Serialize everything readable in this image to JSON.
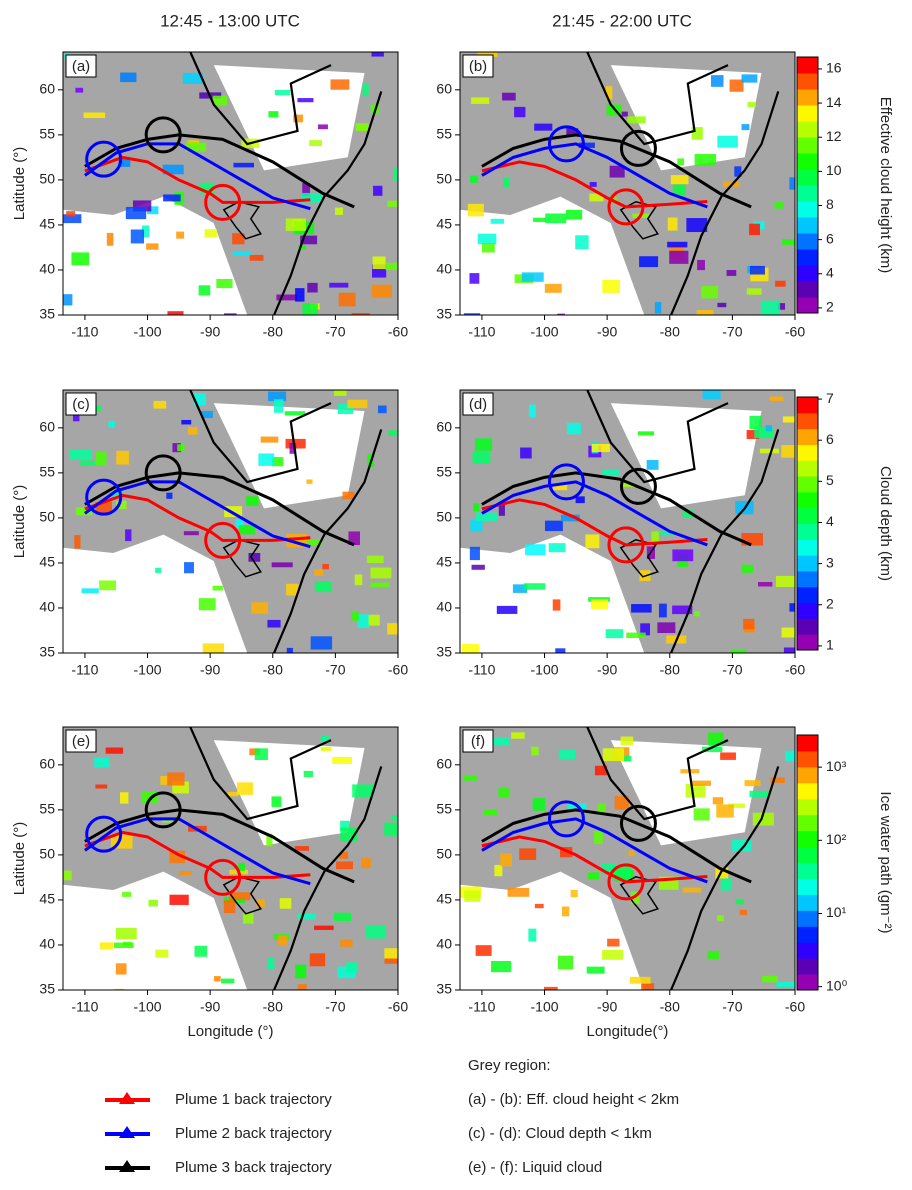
{
  "column_titles": [
    "12:45 - 13:00 UTC",
    "21:45 - 22:00 UTC"
  ],
  "chart_data": [
    {
      "type": "line",
      "panel_label": "(a)",
      "y_label": "Latitude (°)",
      "xlim": [
        -113.5,
        -60
      ],
      "ylim": [
        35,
        64.2
      ],
      "xticks": [
        -110,
        -100,
        -90,
        -80,
        -70,
        -60
      ],
      "yticks": [
        35,
        40,
        45,
        50,
        55,
        60
      ],
      "series": [
        {
          "color": "#ff0000",
          "x": [
            -110,
            -104,
            -100,
            -95,
            -90,
            -88,
            -80,
            -74
          ],
          "y": [
            51,
            52.5,
            52,
            50,
            48.5,
            47.5,
            47.5,
            47.8
          ]
        },
        {
          "color": "#0000ff",
          "x": [
            -110,
            -105,
            -100,
            -95,
            -90,
            -85,
            -80,
            -74
          ],
          "y": [
            50.5,
            53,
            54,
            54,
            52,
            50,
            48,
            46.8
          ]
        },
        {
          "color": "#000000",
          "x": [
            -110,
            -105,
            -100,
            -95,
            -88,
            -80,
            -72,
            -67
          ],
          "y": [
            51.5,
            53.5,
            54.5,
            55,
            54.5,
            52,
            48.5,
            47
          ]
        }
      ],
      "circles": [
        {
          "color": "#0000ff",
          "x": -107,
          "y": 52.3
        },
        {
          "color": "#000000",
          "x": -97.5,
          "y": 55
        },
        {
          "color": "#ff0000",
          "x": -88,
          "y": 47.5
        }
      ]
    },
    {
      "type": "line",
      "panel_label": "(b)",
      "xlim": [
        -113.5,
        -60
      ],
      "ylim": [
        35,
        64.2
      ],
      "xticks": [
        -110,
        -100,
        -90,
        -80,
        -70,
        -60
      ],
      "yticks": [
        35,
        40,
        45,
        50,
        55,
        60
      ],
      "series": [
        {
          "color": "#ff0000",
          "x": [
            -110,
            -104,
            -100,
            -95,
            -90,
            -87,
            -80,
            -74
          ],
          "y": [
            51,
            52,
            51.5,
            50,
            48,
            47,
            47.3,
            47.6
          ]
        },
        {
          "color": "#0000ff",
          "x": [
            -110,
            -105,
            -100,
            -95,
            -90,
            -85,
            -80,
            -74
          ],
          "y": [
            50.5,
            52.5,
            53.5,
            54,
            52.5,
            50.5,
            48.5,
            47
          ]
        },
        {
          "color": "#000000",
          "x": [
            -110,
            -105,
            -100,
            -95,
            -88,
            -80,
            -72,
            -67
          ],
          "y": [
            51.5,
            53.5,
            54.5,
            55,
            54.3,
            52,
            48.5,
            47
          ]
        }
      ],
      "circles": [
        {
          "color": "#0000ff",
          "x": -96.5,
          "y": 54
        },
        {
          "color": "#000000",
          "x": -85,
          "y": 53.5
        },
        {
          "color": "#ff0000",
          "x": -87,
          "y": 47
        }
      ]
    },
    {
      "type": "line",
      "panel_label": "(c)",
      "y_label": "Latitude (°)",
      "xlim": [
        -113.5,
        -60
      ],
      "ylim": [
        35,
        64.2
      ],
      "xticks": [
        -110,
        -100,
        -90,
        -80,
        -70,
        -60
      ],
      "yticks": [
        35,
        40,
        45,
        50,
        55,
        60
      ],
      "series": [
        {
          "color": "#ff0000",
          "x": [
            -110,
            -104,
            -100,
            -95,
            -90,
            -88,
            -80,
            -74
          ],
          "y": [
            51,
            52.5,
            52,
            50,
            48.5,
            47.5,
            47.5,
            47.8
          ]
        },
        {
          "color": "#0000ff",
          "x": [
            -110,
            -105,
            -100,
            -95,
            -90,
            -85,
            -80,
            -74
          ],
          "y": [
            50.5,
            53,
            54,
            54,
            52,
            50,
            48,
            46.8
          ]
        },
        {
          "color": "#000000",
          "x": [
            -110,
            -105,
            -100,
            -95,
            -88,
            -80,
            -72,
            -67
          ],
          "y": [
            51.5,
            53.5,
            54.5,
            55,
            54.5,
            52,
            48.5,
            47
          ]
        }
      ],
      "circles": [
        {
          "color": "#0000ff",
          "x": -107,
          "y": 52.3
        },
        {
          "color": "#000000",
          "x": -97.5,
          "y": 55
        },
        {
          "color": "#ff0000",
          "x": -88,
          "y": 47.5
        }
      ]
    },
    {
      "type": "line",
      "panel_label": "(d)",
      "xlim": [
        -113.5,
        -60
      ],
      "ylim": [
        35,
        64.2
      ],
      "xticks": [
        -110,
        -100,
        -90,
        -80,
        -70,
        -60
      ],
      "yticks": [
        35,
        40,
        45,
        50,
        55,
        60
      ],
      "series": [
        {
          "color": "#ff0000",
          "x": [
            -110,
            -104,
            -100,
            -95,
            -90,
            -87,
            -80,
            -74
          ],
          "y": [
            51,
            52,
            51.5,
            50,
            48,
            47,
            47.3,
            47.6
          ]
        },
        {
          "color": "#0000ff",
          "x": [
            -110,
            -105,
            -100,
            -95,
            -90,
            -85,
            -80,
            -74
          ],
          "y": [
            50.5,
            52.5,
            53.5,
            54,
            52.5,
            50.5,
            48.5,
            47
          ]
        },
        {
          "color": "#000000",
          "x": [
            -110,
            -105,
            -100,
            -95,
            -88,
            -80,
            -72,
            -67
          ],
          "y": [
            51.5,
            53.5,
            54.5,
            55,
            54.3,
            52,
            48.5,
            47
          ]
        }
      ],
      "circles": [
        {
          "color": "#0000ff",
          "x": -96.5,
          "y": 54
        },
        {
          "color": "#000000",
          "x": -85,
          "y": 53.5
        },
        {
          "color": "#ff0000",
          "x": -87,
          "y": 47
        }
      ]
    },
    {
      "type": "line",
      "panel_label": "(e)",
      "y_label": "Latitude (°)",
      "x_label": "Longitude (°)",
      "xlim": [
        -113.5,
        -60
      ],
      "ylim": [
        35,
        64.2
      ],
      "xticks": [
        -110,
        -100,
        -90,
        -80,
        -70,
        -60
      ],
      "yticks": [
        35,
        40,
        45,
        50,
        55,
        60
      ],
      "series": [
        {
          "color": "#ff0000",
          "x": [
            -110,
            -104,
            -100,
            -95,
            -90,
            -88,
            -80,
            -74
          ],
          "y": [
            51,
            52.5,
            52,
            50,
            48.5,
            47.5,
            47.5,
            47.8
          ]
        },
        {
          "color": "#0000ff",
          "x": [
            -110,
            -105,
            -100,
            -95,
            -90,
            -85,
            -80,
            -74
          ],
          "y": [
            50.5,
            53,
            54,
            54,
            52,
            50,
            48,
            46.8
          ]
        },
        {
          "color": "#000000",
          "x": [
            -110,
            -105,
            -100,
            -95,
            -88,
            -80,
            -72,
            -67
          ],
          "y": [
            51.5,
            53.5,
            54.5,
            55,
            54.5,
            52,
            48.5,
            47
          ]
        }
      ],
      "circles": [
        {
          "color": "#0000ff",
          "x": -107,
          "y": 52.3
        },
        {
          "color": "#000000",
          "x": -97.5,
          "y": 55
        },
        {
          "color": "#ff0000",
          "x": -88,
          "y": 47.5
        }
      ]
    },
    {
      "type": "line",
      "panel_label": "(f)",
      "x_label": "Longitude(°)",
      "xlim": [
        -113.5,
        -60
      ],
      "ylim": [
        35,
        64.2
      ],
      "xticks": [
        -110,
        -100,
        -90,
        -80,
        -70,
        -60
      ],
      "yticks": [
        35,
        40,
        45,
        50,
        55,
        60
      ],
      "series": [
        {
          "color": "#ff0000",
          "x": [
            -110,
            -104,
            -100,
            -95,
            -90,
            -87,
            -80,
            -74
          ],
          "y": [
            51,
            52,
            51.5,
            50,
            48,
            47,
            47.3,
            47.6
          ]
        },
        {
          "color": "#0000ff",
          "x": [
            -110,
            -105,
            -100,
            -95,
            -90,
            -85,
            -80,
            -74
          ],
          "y": [
            50.5,
            52.5,
            53.5,
            54,
            52.5,
            50.5,
            48.5,
            47
          ]
        },
        {
          "color": "#000000",
          "x": [
            -110,
            -105,
            -100,
            -95,
            -88,
            -80,
            -72,
            -67
          ],
          "y": [
            51.5,
            53.5,
            54.5,
            55,
            54.3,
            52,
            48.5,
            47
          ]
        }
      ],
      "circles": [
        {
          "color": "#0000ff",
          "x": -96.5,
          "y": 54
        },
        {
          "color": "#000000",
          "x": -85,
          "y": 53.5
        },
        {
          "color": "#ff0000",
          "x": -87,
          "y": 47
        }
      ]
    }
  ],
  "colorbars": [
    {
      "title": "Effective cloud height (km)",
      "ylim": [
        1.7,
        16.7
      ],
      "yticks": [
        2,
        4,
        6,
        8,
        10,
        12,
        14,
        16
      ],
      "log": false
    },
    {
      "title": "Cloud depth (km)",
      "ylim": [
        0.9,
        7.05
      ],
      "yticks": [
        1,
        2,
        3,
        4,
        5,
        6,
        7
      ],
      "log": false
    },
    {
      "title": "Ice water path (gm⁻²)",
      "ylim": [
        0.9,
        2750
      ],
      "yticks": [
        {
          "value": 1,
          "label": "10⁰"
        },
        {
          "value": 10,
          "label": "10¹"
        },
        {
          "value": 100,
          "label": "10²"
        },
        {
          "value": 1000,
          "label": "10³"
        }
      ],
      "log": true
    }
  ],
  "legend": [
    {
      "name": "Plume 1 back trajectory",
      "color": "#ff0000"
    },
    {
      "name": "Plume 2 back trajectory",
      "color": "#0000ff"
    },
    {
      "name": "Plume 3 back trajectory",
      "color": "#000000"
    }
  ],
  "notes": {
    "title": "Grey region:",
    "lines": [
      "(a) - (b): Eff. cloud height < 2km",
      "(c) - (d): Cloud depth < 1km",
      "(e) - (f):  Liquid cloud"
    ]
  }
}
